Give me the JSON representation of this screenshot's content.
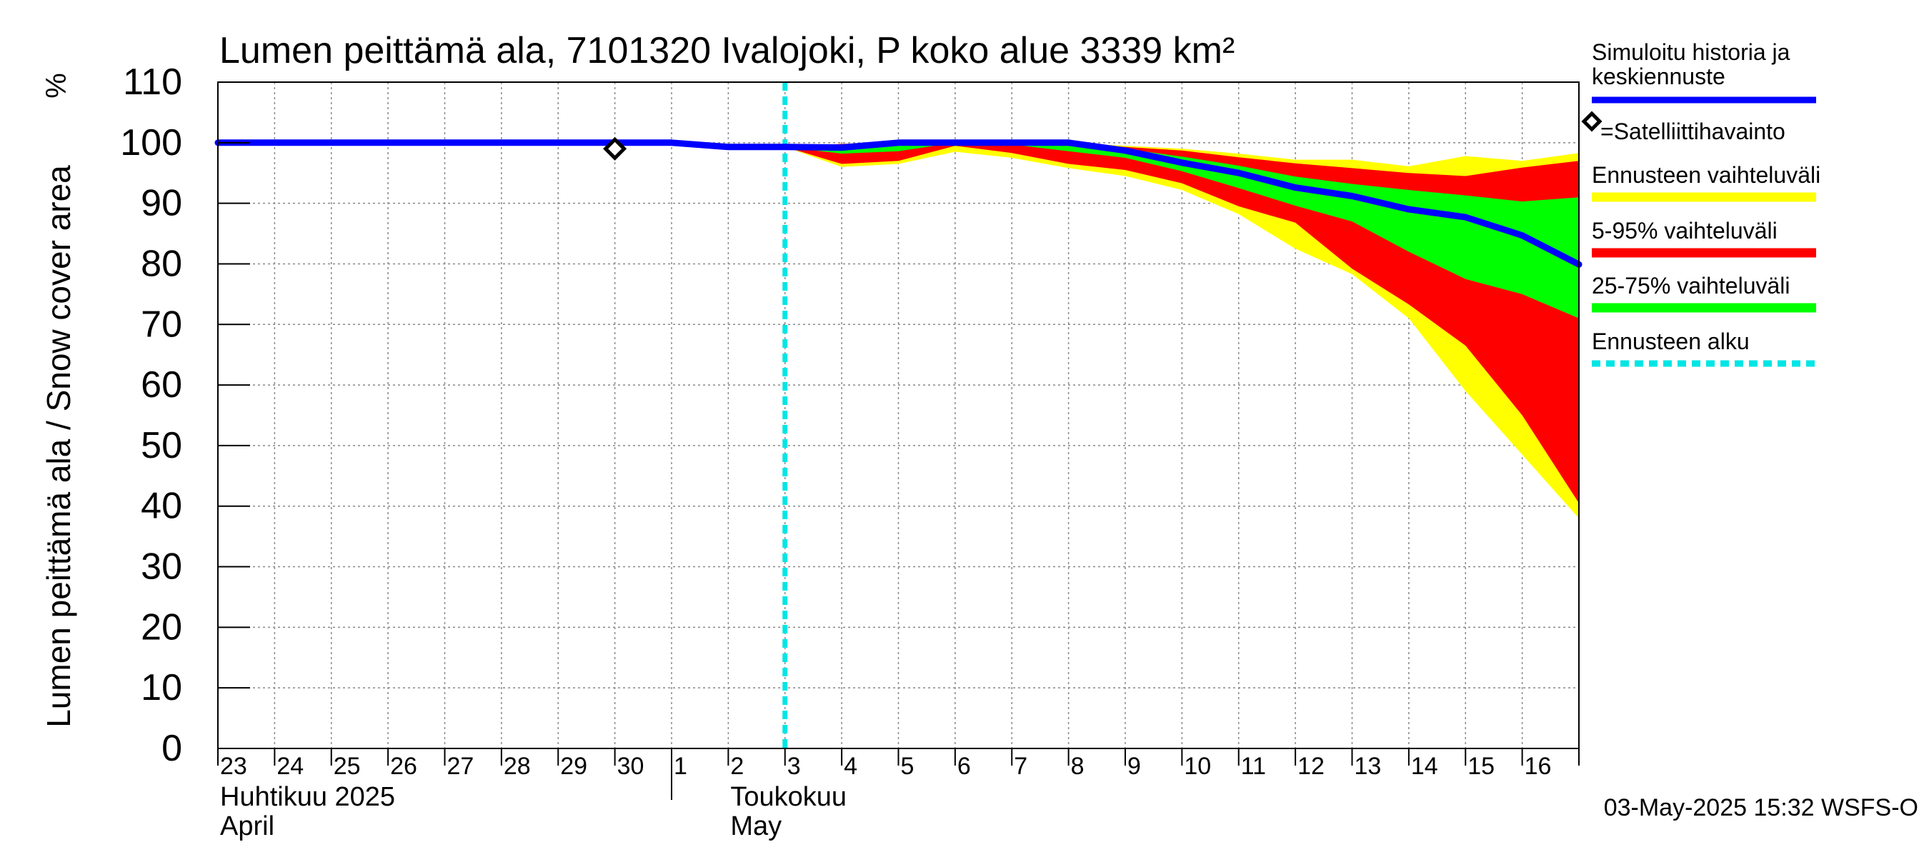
{
  "chart_data": {
    "type": "area",
    "title": "Lumen peittämä ala, 7101320 Ivalojoki, P koko alue 3339 km²",
    "ylabel": "Lumen peittämä ala / Snow cover area",
    "yunit": "%",
    "ylim": [
      0,
      110
    ],
    "yticks": [
      0,
      10,
      20,
      30,
      40,
      50,
      60,
      70,
      80,
      90,
      100,
      110
    ],
    "xlim": [
      "2025-04-23",
      "2025-05-17"
    ],
    "day_labels": [
      "23",
      "24",
      "25",
      "26",
      "27",
      "28",
      "29",
      "30",
      "1",
      "2",
      "3",
      "4",
      "5",
      "6",
      "7",
      "8",
      "9",
      "10",
      "11",
      "12",
      "13",
      "14",
      "15",
      "16"
    ],
    "month_labels": [
      {
        "fi": "Huhtikuu  2025",
        "en": "April"
      },
      {
        "fi": "Toukokuu",
        "en": "May"
      }
    ],
    "grid": true,
    "legend_position": "right",
    "forecast_start": "2025-05-03",
    "satellite_observations": [
      {
        "date": "2025-04-30",
        "value": 99
      }
    ],
    "series": [
      {
        "name": "Simuloitu historia ja keskiennuste",
        "color": "#0000ff",
        "x": [
          "2025-04-23",
          "2025-04-30",
          "2025-05-01",
          "2025-05-02",
          "2025-05-03",
          "2025-05-04",
          "2025-05-05",
          "2025-05-06",
          "2025-05-07",
          "2025-05-08",
          "2025-05-09",
          "2025-05-10",
          "2025-05-11",
          "2025-05-12",
          "2025-05-13",
          "2025-05-14",
          "2025-05-15",
          "2025-05-16",
          "2025-05-17"
        ],
        "values": [
          100,
          100,
          100,
          99.3,
          99.3,
          99.2,
          100,
          100,
          100,
          100,
          98.7,
          96.7,
          95,
          92.6,
          91.2,
          89,
          87.7,
          84.7,
          79.9
        ]
      }
    ],
    "bands": [
      {
        "name": "Ennusteen vaihteluväli",
        "color": "#ffff00",
        "x": [
          "2025-05-03",
          "2025-05-04",
          "2025-05-05",
          "2025-05-06",
          "2025-05-07",
          "2025-05-08",
          "2025-05-09",
          "2025-05-10",
          "2025-05-11",
          "2025-05-12",
          "2025-05-13",
          "2025-05-14",
          "2025-05-15",
          "2025-05-16",
          "2025-05-17"
        ],
        "upper": [
          99.3,
          99.8,
          100,
          100,
          100,
          100,
          99.5,
          99,
          98.2,
          97.2,
          97.2,
          96.1,
          97.8,
          97,
          98.3
        ],
        "lower": [
          99.3,
          96,
          96.5,
          98.5,
          97.5,
          95.8,
          94.5,
          92.2,
          88.2,
          82.5,
          78.3,
          71,
          59,
          48.5,
          38
        ]
      },
      {
        "name": "5-95% vaihteluväli",
        "color": "#ff0000",
        "x": [
          "2025-05-03",
          "2025-05-04",
          "2025-05-05",
          "2025-05-06",
          "2025-05-07",
          "2025-05-08",
          "2025-05-09",
          "2025-05-10",
          "2025-05-11",
          "2025-05-12",
          "2025-05-13",
          "2025-05-14",
          "2025-05-15",
          "2025-05-16",
          "2025-05-17"
        ],
        "upper": [
          99.3,
          99.8,
          100,
          100,
          100,
          100,
          99.3,
          98.7,
          97.6,
          96.6,
          95.8,
          95,
          94.5,
          95.9,
          97
        ],
        "lower": [
          99.3,
          96.5,
          97,
          99.5,
          98.3,
          96.5,
          95.5,
          93.3,
          89.5,
          86.8,
          79.2,
          73.3,
          66.5,
          55,
          40.5
        ]
      },
      {
        "name": "25-75% vaihteluväli",
        "color": "#00ff00",
        "x": [
          "2025-05-03",
          "2025-05-04",
          "2025-05-05",
          "2025-05-06",
          "2025-05-07",
          "2025-05-08",
          "2025-05-09",
          "2025-05-10",
          "2025-05-11",
          "2025-05-12",
          "2025-05-13",
          "2025-05-14",
          "2025-05-15",
          "2025-05-16",
          "2025-05-17"
        ],
        "upper": [
          99.3,
          99.6,
          100,
          100,
          100,
          100,
          99,
          97.7,
          96.2,
          94.4,
          93.2,
          92.2,
          91.3,
          90.3,
          91
        ],
        "lower": [
          99.3,
          98.2,
          98.6,
          100,
          99.7,
          98.6,
          97.5,
          95.3,
          92.5,
          89.6,
          87,
          82,
          77.5,
          75,
          71
        ]
      }
    ],
    "legend": [
      {
        "label": "Simuloitu historia ja keskiennuste",
        "symbol": "line",
        "color": "#0000ff"
      },
      {
        "label": "=Satelliittihavainto",
        "symbol": "diamond",
        "color": "#000000"
      },
      {
        "label": "Ennusteen vaihteluväli",
        "symbol": "line",
        "color": "#ffff00"
      },
      {
        "label": "5-95% vaihteluväli",
        "symbol": "line",
        "color": "#ff0000"
      },
      {
        "label": "25-75% vaihteluväli",
        "symbol": "line",
        "color": "#00ff00"
      },
      {
        "label": "Ennusteen alku",
        "symbol": "dashed-line",
        "color": "#00e5e5"
      }
    ],
    "footer": "03-May-2025 15:32 WSFS-O"
  }
}
